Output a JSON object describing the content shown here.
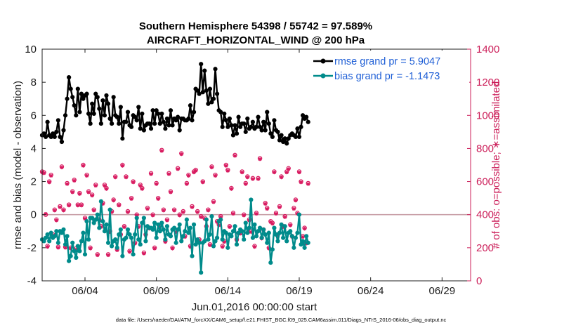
{
  "chart_data": {
    "type": "line",
    "title_line1": "Southern Hemisphere 54398 / 55742 = 97.589%",
    "title_line2": "AIRCRAFT_HORIZONTAL_WIND @ 200 hPa",
    "xlabel": "Jun.01,2016 00:00:00 start",
    "ylabel_left": "rmse and bias (model - observation)",
    "ylabel_right": "# of obs: o=possible; ∗=assimilated",
    "footnote": "data file: /Users/raeder/DAI/ATM_forcXX/CAM6_setup/f.e21.FHIST_BGC.f09_025.CAM6assim.011/Diags_NTrS_2016-06/obs_diag_output.nc",
    "xlim": [
      1,
      31
    ],
    "x_ticks": [
      {
        "value": 4,
        "label": "06/04"
      },
      {
        "value": 9,
        "label": "06/09"
      },
      {
        "value": 14,
        "label": "06/14"
      },
      {
        "value": 19,
        "label": "06/19"
      },
      {
        "value": 24,
        "label": "06/24"
      },
      {
        "value": 29,
        "label": "06/29"
      }
    ],
    "ylim_left": [
      -4,
      10
    ],
    "yticks_left": [
      "-4",
      "-2",
      "0",
      "2",
      "4",
      "6",
      "8",
      "10"
    ],
    "ylim_right": [
      0,
      1400
    ],
    "yticks_right": [
      "0",
      "200",
      "400",
      "600",
      "800",
      "1000",
      "1200",
      "1400"
    ],
    "zero_line": 0,
    "colors": {
      "rmse": "#000000",
      "bias": "#008b8b",
      "obs": "#d81b60",
      "zero": "#c9a0a8",
      "axis": "#222222"
    },
    "legend": {
      "position": "top-right",
      "entries": [
        "rmse grand pr = 5.9047",
        "bias grand pr = -1.1473"
      ]
    },
    "x_start": 1,
    "x_step": 0.125,
    "series": [
      {
        "name": "rmse grand pr = 5.9047",
        "values": [
          4.8,
          4.9,
          4.7,
          5.6,
          4.8,
          4.7,
          4.9,
          4.7,
          5.0,
          5.7,
          4.7,
          4.4,
          5.1,
          6.0,
          7.0,
          8.3,
          7.6,
          7.1,
          6.6,
          6.0,
          7.6,
          6.2,
          7.3,
          7.0,
          7.2,
          7.3,
          6.1,
          5.5,
          6.7,
          6.1,
          7.3,
          7.1,
          6.4,
          5.5,
          6.9,
          6.0,
          7.2,
          6.7,
          5.8,
          5.5,
          7.1,
          6.0,
          5.9,
          5.5,
          6.5,
          4.6,
          5.6,
          5.6,
          6.2,
          5.4,
          5.3,
          6.0,
          5.9,
          5.7,
          6.5,
          5.2,
          6.1,
          5.1,
          5.4,
          5.5,
          5.5,
          5.2,
          6.3,
          5.5,
          6.3,
          6.1,
          5.5,
          6.1,
          5.6,
          5.2,
          5.8,
          5.4,
          6.3,
          5.4,
          5.8,
          5.7,
          5.9,
          5.1,
          5.8,
          5.8,
          5.7,
          5.7,
          5.8,
          6.6,
          5.7,
          6.2,
          7.6,
          7.5,
          7.3,
          9.1,
          7.4,
          8.7,
          7.5,
          6.7,
          7.6,
          6.8,
          7.0,
          8.8,
          7.3,
          6.3,
          6.2,
          5.3,
          6.1,
          5.7,
          5.3,
          5.8,
          5.4,
          4.8,
          5.4,
          4.9,
          5.9,
          5.3,
          5.5,
          5.5,
          5.0,
          5.8,
          5.2,
          5.3,
          5.6,
          5.2,
          5.3,
          5.9,
          5.3,
          5.1,
          5.6,
          5.1,
          6.2,
          5.5,
          4.9,
          4.7,
          5.7,
          5.1,
          5.0,
          4.5,
          4.8,
          4.4,
          4.6,
          4.3,
          4.6,
          4.8,
          4.9,
          4.8,
          4.7,
          5.2,
          4.7,
          5.3,
          6.0,
          5.8,
          5.9,
          5.6
        ]
      },
      {
        "name": "bias grand pr = -1.1473",
        "values": [
          -1.5,
          -1.6,
          -1.4,
          -1.2,
          -1.6,
          -1.1,
          -1.4,
          -1.3,
          -1.0,
          -1.7,
          -1.0,
          -1.1,
          -0.9,
          -1.8,
          -1.3,
          -2.8,
          -2.5,
          -1.7,
          -2.2,
          -2.6,
          -1.9,
          -2.2,
          -1.6,
          -1.1,
          -2.4,
          -0.4,
          -1.5,
          -0.2,
          -0.2,
          -0.5,
          -0.3,
          0.0,
          -0.8,
          0.8,
          -0.4,
          -1.0,
          -0.6,
          -1.7,
          0.3,
          -1.9,
          -1.6,
          -1.5,
          -2.0,
          -1.2,
          -0.9,
          -2.5,
          -1.5,
          -1.4,
          -0.9,
          -1.2,
          -1.4,
          -2.4,
          -1.2,
          -0.2,
          -1.5,
          -1.8,
          -0.5,
          -0.2,
          -1.6,
          -0.7,
          -0.8,
          -0.8,
          -0.9,
          -0.5,
          -1.4,
          -0.6,
          -1.0,
          -0.5,
          -0.9,
          -1.5,
          -0.7,
          -1.2,
          -1.3,
          -0.9,
          -0.8,
          -1.7,
          -0.9,
          -0.6,
          -1.6,
          -1.3,
          -1.0,
          -0.3,
          -1.1,
          -0.8,
          -2.5,
          -0.6,
          -1.8,
          -1.5,
          -1.7,
          -3.5,
          -1.7,
          -1.6,
          -0.3,
          -1.5,
          -1.2,
          -0.1,
          -1.9,
          -1.6,
          -1.4,
          -0.4,
          -0.3,
          -1.5,
          -1.0,
          -1.1,
          -2.0,
          -1.2,
          -1.3,
          -1.0,
          -0.7,
          -1.8,
          -1.1,
          -0.9,
          -1.0,
          -1.5,
          -0.5,
          -1.1,
          -0.8,
          0.9,
          -1.4,
          -0.6,
          -1.3,
          -1.0,
          -0.8,
          -1.4,
          -0.9,
          -1.2,
          -1.7,
          -1.1,
          -2.9,
          -2.1,
          -0.8,
          -1.2,
          -1.6,
          -1.1,
          -0.6,
          -1.4,
          -0.7,
          -1.6,
          -1.1,
          -1.0,
          -1.3,
          -2.0,
          -1.4,
          -1.1,
          0.0,
          -1.8,
          -1.6,
          -2.0,
          -1.3,
          -1.7
        ]
      },
      {
        "name": "obs possible",
        "values": [
          660,
          655,
          400,
          210,
          600,
          640,
          280,
          430,
          370,
          205,
          450,
          690,
          430,
          205,
          590,
          460,
          200,
          540,
          610,
          195,
          460,
          530,
          460,
          700,
          380,
          640,
          540,
          200,
          520,
          430,
          580,
          160,
          370,
          330,
          470,
          580,
          560,
          160,
          300,
          420,
          490,
          630,
          190,
          460,
          280,
          700,
          330,
          630,
          420,
          180,
          500,
          600,
          230,
          400,
          330,
          580,
          560,
          170,
          280,
          440,
          320,
          650,
          400,
          200,
          590,
          500,
          330,
          790,
          430,
          240,
          370,
          650,
          540,
          200,
          430,
          300,
          680,
          400,
          770,
          420,
          270,
          590,
          640,
          210,
          450,
          660,
          670,
          420,
          250,
          390,
          600,
          380,
          330,
          430,
          220,
          690,
          480,
          640,
          360,
          340,
          390,
          210,
          240,
          700,
          670,
          330,
          560,
          410,
          760,
          250,
          290,
          290,
          660,
          400,
          590,
          630,
          370,
          300,
          620,
          210,
          410,
          620,
          740,
          260,
          310,
          470,
          440,
          200,
          360,
          350,
          660,
          410,
          280,
          450,
          630,
          330,
          390,
          660,
          680,
          340,
          270,
          440,
          490,
          410,
          660,
          600,
          270,
          320,
          230,
          590
        ]
      },
      {
        "name": "obs assimilated",
        "values": [
          655,
          650,
          405,
          205,
          595,
          635,
          275,
          425,
          365,
          200,
          445,
          685,
          425,
          200,
          585,
          455,
          195,
          535,
          605,
          190,
          455,
          525,
          455,
          695,
          375,
          635,
          535,
          195,
          515,
          425,
          575,
          155,
          365,
          325,
          465,
          575,
          555,
          155,
          295,
          415,
          485,
          625,
          185,
          455,
          275,
          695,
          325,
          625,
          415,
          175,
          495,
          595,
          225,
          395,
          325,
          575,
          555,
          165,
          275,
          435,
          315,
          645,
          395,
          195,
          585,
          495,
          325,
          785,
          425,
          235,
          365,
          645,
          535,
          195,
          425,
          295,
          675,
          395,
          765,
          415,
          265,
          585,
          635,
          205,
          445,
          655,
          665,
          415,
          245,
          385,
          595,
          375,
          325,
          425,
          215,
          685,
          475,
          635,
          355,
          335,
          385,
          205,
          235,
          695,
          665,
          325,
          555,
          405,
          755,
          245,
          285,
          285,
          655,
          395,
          585,
          625,
          365,
          295,
          615,
          205,
          405,
          615,
          735,
          255,
          305,
          465,
          435,
          195,
          355,
          345,
          655,
          405,
          275,
          445,
          625,
          325,
          385,
          655,
          675,
          335,
          265,
          435,
          485,
          405,
          655,
          595,
          265,
          315,
          225,
          585
        ]
      }
    ]
  }
}
